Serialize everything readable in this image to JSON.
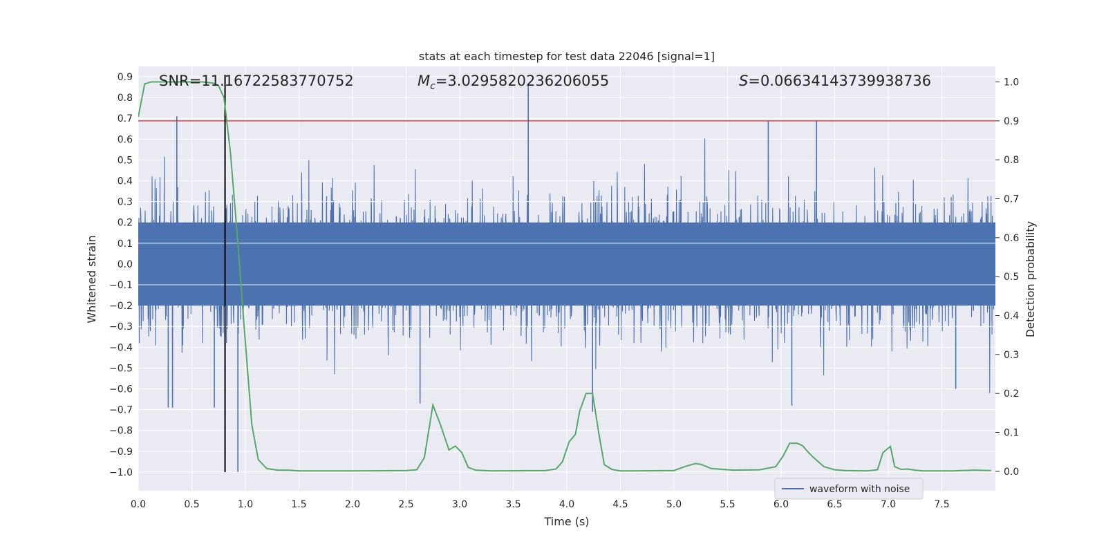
{
  "chart_data": {
    "type": "line",
    "title": "stats at each timestep for test data 22046 [signal=1]",
    "xlabel": "Time (s)",
    "ylabel": "Whitened strain",
    "y2label": "Detection probability",
    "xlim": [
      0.0,
      8.0
    ],
    "ylim": [
      -1.09,
      0.95
    ],
    "y2lim": [
      -0.05,
      1.04
    ],
    "grid": true,
    "legend_position": "bottom-right",
    "x_ticks": [
      "0.0",
      "0.5",
      "1.0",
      "1.5",
      "2.0",
      "2.5",
      "3.0",
      "3.5",
      "4.0",
      "4.5",
      "5.0",
      "5.5",
      "6.0",
      "6.5",
      "7.0",
      "7.5"
    ],
    "y_ticks": [
      "0.9",
      "0.8",
      "0.7",
      "0.6",
      "0.5",
      "0.4",
      "0.3",
      "0.2",
      "0.1",
      "0.0",
      "−0.1",
      "−0.2",
      "−0.3",
      "−0.4",
      "−0.5",
      "−0.6",
      "−0.7",
      "−0.8",
      "−0.9",
      "−1.0"
    ],
    "y2_ticks": [
      "1.0",
      "0.9",
      "0.8",
      "0.7",
      "0.6",
      "0.5",
      "0.4",
      "0.3",
      "0.2",
      "0.1",
      "0.0"
    ],
    "annotations": {
      "snr": "SNR=11.16722583770752",
      "mc_symbol": "M",
      "mc_subscript": "c",
      "mc_value": "=3.0295820236206055",
      "s_symbol": "S",
      "s_value": "=0.06634143739938736"
    },
    "series": [
      {
        "name": "waveform with noise",
        "axis": "left",
        "color": "#4c72b0",
        "envelope_note": "dense noise waveform, approx range -0.6 to 0.6 with spikes",
        "spikes": [
          {
            "x": 0.36,
            "y": 0.71
          },
          {
            "x": 0.28,
            "y": -0.69
          },
          {
            "x": 0.32,
            "y": -0.69
          },
          {
            "x": 0.71,
            "y": -0.69
          },
          {
            "x": 0.93,
            "y": -1.0
          },
          {
            "x": 3.64,
            "y": 0.86
          },
          {
            "x": 4.24,
            "y": -0.71
          },
          {
            "x": 5.88,
            "y": 0.69
          },
          {
            "x": 6.33,
            "y": 0.69
          },
          {
            "x": 6.1,
            "y": -0.68
          },
          {
            "x": 2.63,
            "y": -0.67
          },
          {
            "x": 7.63,
            "y": -0.6
          }
        ]
      },
      {
        "name": "",
        "axis": "right",
        "color": "#55a868",
        "x": [
          0.0,
          0.06,
          0.12,
          0.2,
          0.3,
          0.45,
          0.6,
          0.7,
          0.75,
          0.8,
          0.86,
          0.92,
          1.0,
          1.06,
          1.12,
          1.2,
          1.3,
          1.4,
          1.5,
          1.6,
          2.0,
          2.5,
          2.6,
          2.67,
          2.75,
          2.82,
          2.9,
          2.96,
          3.02,
          3.08,
          3.15,
          3.3,
          3.8,
          3.9,
          3.96,
          4.02,
          4.08,
          4.12,
          4.18,
          4.24,
          4.3,
          4.35,
          4.42,
          4.5,
          4.6,
          5.0,
          5.1,
          5.2,
          5.25,
          5.35,
          5.55,
          5.8,
          5.95,
          6.02,
          6.08,
          6.15,
          6.2,
          6.25,
          6.3,
          6.4,
          6.5,
          6.6,
          6.8,
          6.9,
          6.95,
          7.02,
          7.06,
          7.12,
          7.18,
          7.25,
          7.32,
          7.4,
          7.6,
          7.8,
          7.96
        ],
        "y": [
          0.91,
          0.995,
          1.0,
          1.0,
          1.0,
          1.0,
          1.0,
          0.997,
          0.99,
          0.96,
          0.82,
          0.62,
          0.33,
          0.12,
          0.03,
          0.007,
          0.003,
          0.003,
          0.001,
          0.001,
          0.001,
          0.002,
          0.004,
          0.035,
          0.17,
          0.12,
          0.055,
          0.065,
          0.048,
          0.01,
          0.003,
          0.001,
          0.002,
          0.006,
          0.025,
          0.075,
          0.095,
          0.155,
          0.2,
          0.2,
          0.095,
          0.017,
          0.005,
          0.001,
          0.001,
          0.002,
          0.012,
          0.02,
          0.018,
          0.007,
          0.003,
          0.004,
          0.012,
          0.04,
          0.072,
          0.072,
          0.066,
          0.05,
          0.036,
          0.012,
          0.004,
          0.002,
          0.001,
          0.004,
          0.048,
          0.064,
          0.012,
          0.005,
          0.006,
          0.003,
          0.001,
          0.001,
          0.001,
          0.003,
          0.002
        ]
      }
    ],
    "threshold_line": {
      "axis": "right",
      "y": 0.9,
      "color": "#c44e52"
    },
    "vertical_line": {
      "x": 0.81,
      "color": "#000000"
    }
  }
}
